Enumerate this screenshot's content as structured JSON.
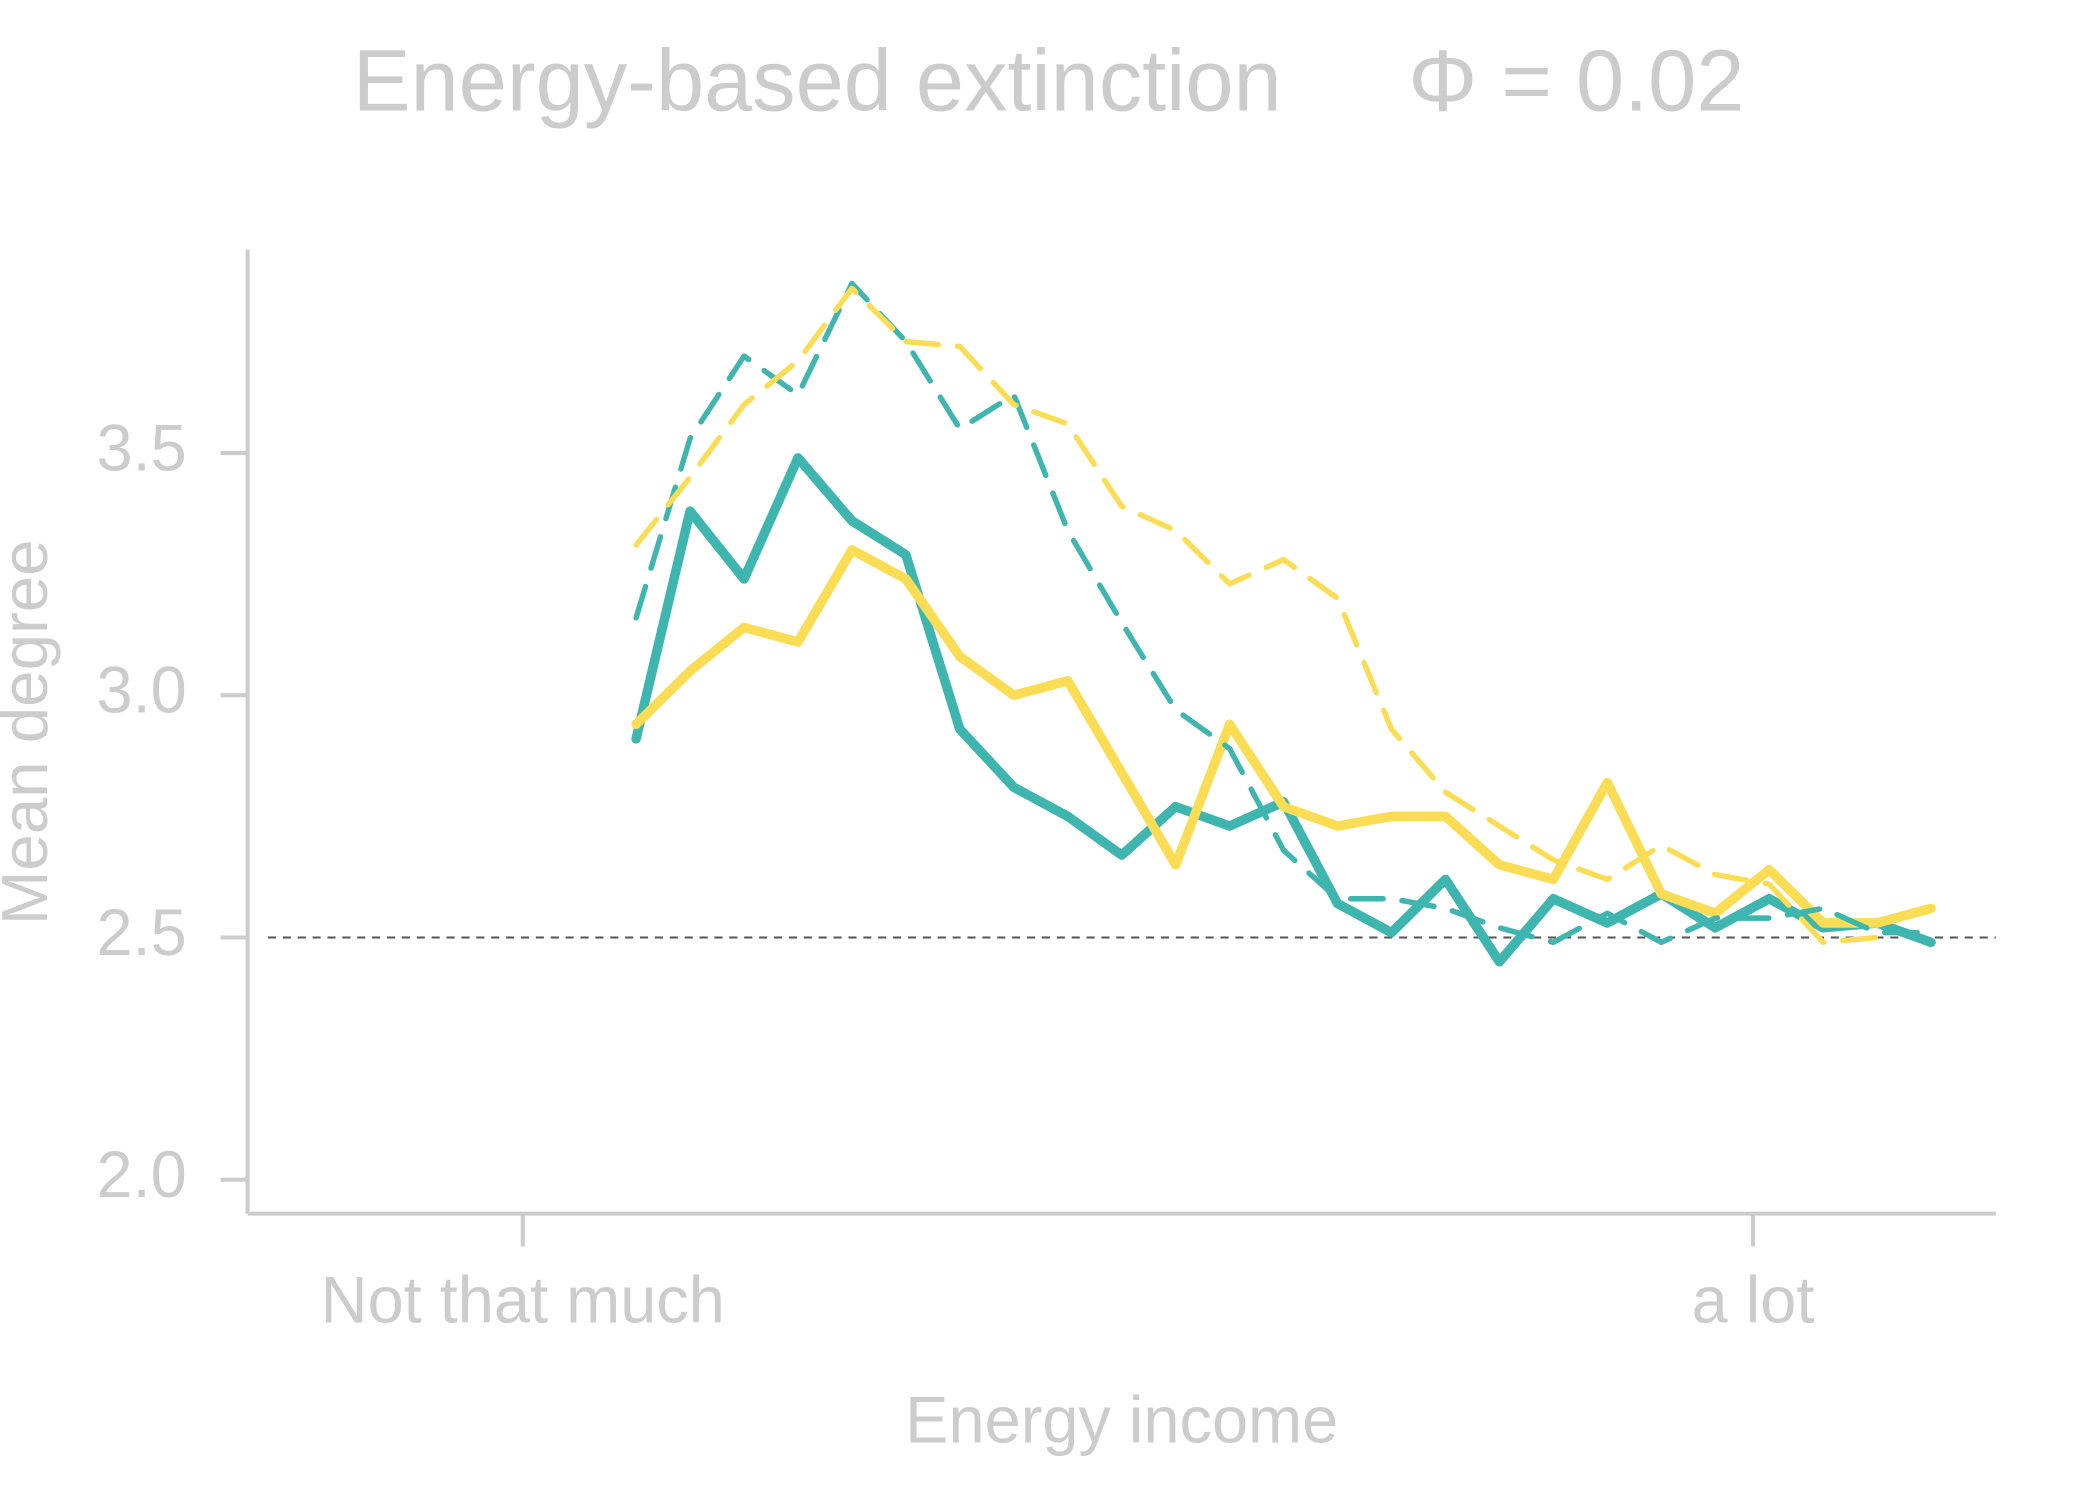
{
  "chart_data": {
    "type": "line",
    "title": "Energy-based extinction",
    "annotation": "Φ = 0.02",
    "xlabel": "Energy income",
    "ylabel": "Mean degree",
    "x": [
      0,
      1,
      2,
      3,
      4,
      5,
      6,
      7,
      8,
      9,
      10,
      11,
      12,
      13,
      14,
      15,
      16,
      17,
      18,
      19,
      20,
      21,
      22,
      23,
      24
    ],
    "xlim": [
      -7.2,
      25.2
    ],
    "xticks": [
      {
        "value": -2.1,
        "label": "Not that much"
      },
      {
        "value": 20.7,
        "label": "a lot"
      }
    ],
    "ylim": [
      1.93,
      3.92
    ],
    "yticks": [
      {
        "value": 2,
        "label": "2.0"
      },
      2.5,
      {
        "value": 3,
        "label": "3.0"
      },
      3.5
    ],
    "hline": 2.5,
    "grid": false,
    "series": [
      {
        "color": "#3eb5ae",
        "dashed": false,
        "values": [
          2.91,
          3.38,
          3.24,
          3.49,
          3.36,
          3.29,
          2.93,
          2.81,
          2.75,
          2.67,
          2.77,
          2.73,
          2.78,
          2.57,
          2.51,
          2.62,
          2.45,
          2.58,
          2.53,
          2.59,
          2.52,
          2.58,
          2.52,
          2.53,
          2.49
        ]
      },
      {
        "color": "#fbdd55",
        "dashed": false,
        "values": [
          2.94,
          3.05,
          3.14,
          3.11,
          3.3,
          3.24,
          3.08,
          3.0,
          3.03,
          2.84,
          2.65,
          2.94,
          2.77,
          2.73,
          2.75,
          2.75,
          2.65,
          2.62,
          2.82,
          2.59,
          2.55,
          2.64,
          2.53,
          2.53,
          2.56
        ]
      },
      {
        "color": "#3eb5ae",
        "dashed": true,
        "values": [
          3.16,
          3.53,
          3.7,
          3.62,
          3.85,
          3.73,
          3.55,
          3.62,
          3.34,
          3.15,
          2.97,
          2.89,
          2.68,
          2.58,
          2.58,
          2.56,
          2.52,
          2.49,
          2.55,
          2.49,
          2.54,
          2.54,
          2.56,
          2.51,
          2.51
        ]
      },
      {
        "color": "#fbdd55",
        "dashed": true,
        "values": [
          3.31,
          3.45,
          3.6,
          3.69,
          3.84,
          3.73,
          3.72,
          3.6,
          3.56,
          3.39,
          3.34,
          3.23,
          3.28,
          3.2,
          2.93,
          2.8,
          2.73,
          2.66,
          2.62,
          2.69,
          2.63,
          2.61,
          2.49,
          2.5,
          null
        ]
      }
    ]
  }
}
